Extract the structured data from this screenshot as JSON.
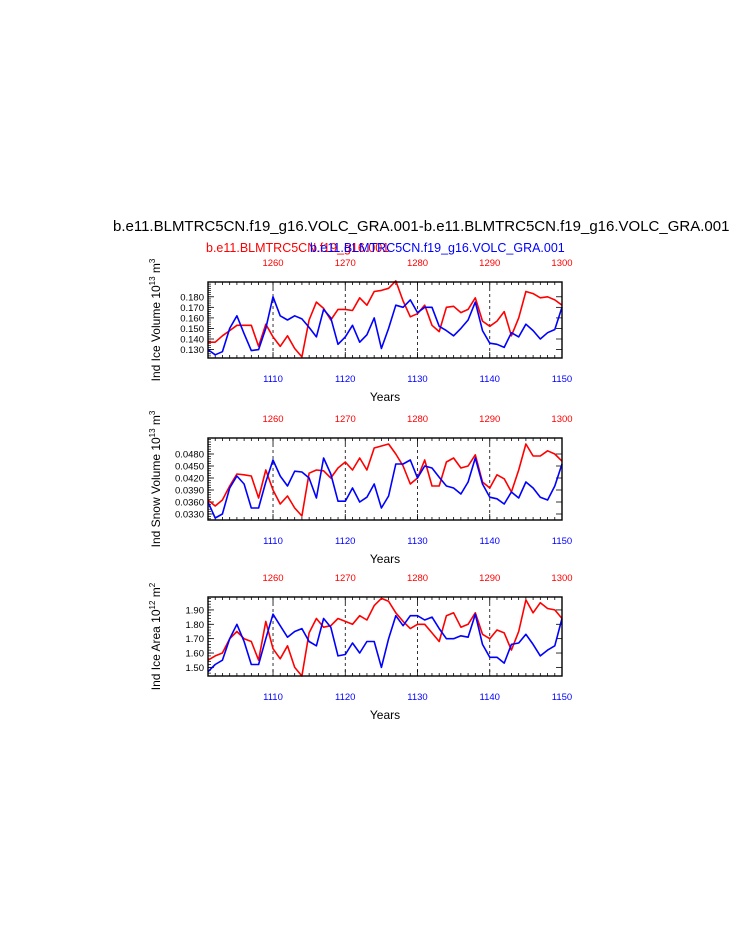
{
  "title": "b.e11.BLMTRC5CN.f19_g16.VOLC_GRA.001-b.e11.BLMTRC5CN.f19_g16.VOLC_GRA.001",
  "legend": {
    "red_label": "b.e11.BLMTRC5CN.f19_g16.001",
    "blue_label": "b.e11.BLMTRC5CN.f19_g16.VOLC_GRA.001"
  },
  "colors": {
    "red": "#ff0000",
    "blue": "#0000ff",
    "axis": "#000000"
  },
  "chart_data": [
    {
      "type": "line",
      "ylabel": "Ind Ice Volume 10",
      "ylabel_sup": "13",
      "ylabel_unit": "m",
      "ylabel_unit_sup": "3",
      "xlabel": "Years",
      "ylim": [
        0.122,
        0.194
      ],
      "yticks": [
        "0.130",
        "0.140",
        "0.150",
        "0.160",
        "0.170",
        "0.180"
      ],
      "bottom_axis": {
        "lim": [
          1101,
          1150
        ],
        "ticks": [
          "1110",
          "1120",
          "1130",
          "1140",
          "1150"
        ]
      },
      "top_axis": {
        "lim": [
          1251,
          1300
        ],
        "ticks": [
          "1260",
          "1270",
          "1280",
          "1290",
          "1300"
        ]
      },
      "series": [
        {
          "name": "b.e11.BLMTRC5CN.f19_g16.001",
          "color": "#ff0000",
          "axis": "top",
          "x": [
            1251,
            1252,
            1253,
            1254,
            1255,
            1256,
            1257,
            1258,
            1259,
            1260,
            1261,
            1262,
            1263,
            1264,
            1265,
            1266,
            1267,
            1268,
            1269,
            1270,
            1271,
            1272,
            1273,
            1274,
            1275,
            1276,
            1277,
            1278,
            1279,
            1280,
            1281,
            1282,
            1283,
            1284,
            1285,
            1286,
            1287,
            1288,
            1289,
            1290,
            1291,
            1292,
            1293,
            1294,
            1295,
            1296,
            1297,
            1298,
            1299,
            1300
          ],
          "values": [
            0.137,
            0.137,
            0.143,
            0.148,
            0.153,
            0.153,
            0.153,
            0.133,
            0.154,
            0.142,
            0.133,
            0.143,
            0.131,
            0.123,
            0.158,
            0.175,
            0.169,
            0.158,
            0.168,
            0.168,
            0.167,
            0.179,
            0.172,
            0.185,
            0.186,
            0.188,
            0.195,
            0.176,
            0.161,
            0.164,
            0.172,
            0.153,
            0.147,
            0.17,
            0.171,
            0.165,
            0.168,
            0.179,
            0.157,
            0.152,
            0.157,
            0.166,
            0.143,
            0.16,
            0.185,
            0.183,
            0.179,
            0.18,
            0.177,
            0.172
          ]
        },
        {
          "name": "b.e11.BLMTRC5CN.f19_g16.VOLC_GRA.001",
          "color": "#0000ff",
          "axis": "bottom",
          "x": [
            1101,
            1102,
            1103,
            1104,
            1105,
            1106,
            1107,
            1108,
            1109,
            1110,
            1111,
            1112,
            1113,
            1114,
            1115,
            1116,
            1117,
            1118,
            1119,
            1120,
            1121,
            1122,
            1123,
            1124,
            1125,
            1126,
            1127,
            1128,
            1129,
            1130,
            1131,
            1132,
            1133,
            1134,
            1135,
            1136,
            1137,
            1138,
            1139,
            1140,
            1141,
            1142,
            1143,
            1144,
            1145,
            1146,
            1147,
            1148,
            1149,
            1150
          ],
          "values": [
            0.13,
            0.125,
            0.128,
            0.15,
            0.162,
            0.145,
            0.129,
            0.13,
            0.15,
            0.18,
            0.162,
            0.158,
            0.162,
            0.159,
            0.151,
            0.142,
            0.168,
            0.16,
            0.135,
            0.142,
            0.153,
            0.137,
            0.144,
            0.16,
            0.131,
            0.15,
            0.172,
            0.17,
            0.177,
            0.165,
            0.17,
            0.17,
            0.152,
            0.148,
            0.143,
            0.15,
            0.158,
            0.175,
            0.148,
            0.136,
            0.135,
            0.132,
            0.146,
            0.142,
            0.154,
            0.148,
            0.14,
            0.146,
            0.149,
            0.17
          ]
        }
      ]
    },
    {
      "type": "line",
      "ylabel": "Ind Snow Volume 10",
      "ylabel_sup": "13",
      "ylabel_unit": "m",
      "ylabel_unit_sup": "3",
      "xlabel": "Years",
      "ylim": [
        0.0315,
        0.052
      ],
      "yticks": [
        "0.0330",
        "0.0360",
        "0.0390",
        "0.0420",
        "0.0450",
        "0.0480"
      ],
      "bottom_axis": {
        "lim": [
          1101,
          1150
        ],
        "ticks": [
          "1110",
          "1120",
          "1130",
          "1140",
          "1150"
        ]
      },
      "top_axis": {
        "lim": [
          1251,
          1300
        ],
        "ticks": [
          "1260",
          "1270",
          "1280",
          "1290",
          "1300"
        ]
      },
      "series": [
        {
          "name": "b.e11.BLMTRC5CN.f19_g16.001",
          "color": "#ff0000",
          "axis": "top",
          "x": [
            1251,
            1252,
            1253,
            1254,
            1255,
            1256,
            1257,
            1258,
            1259,
            1260,
            1261,
            1262,
            1263,
            1264,
            1265,
            1266,
            1267,
            1268,
            1269,
            1270,
            1271,
            1272,
            1273,
            1274,
            1275,
            1276,
            1277,
            1278,
            1279,
            1280,
            1281,
            1282,
            1283,
            1284,
            1285,
            1286,
            1287,
            1288,
            1289,
            1290,
            1291,
            1292,
            1293,
            1294,
            1295,
            1296,
            1297,
            1298,
            1299,
            1300
          ],
          "values": [
            0.0365,
            0.035,
            0.0365,
            0.04,
            0.043,
            0.0428,
            0.0425,
            0.037,
            0.044,
            0.039,
            0.0355,
            0.0375,
            0.0345,
            0.0325,
            0.0432,
            0.044,
            0.0438,
            0.042,
            0.0445,
            0.046,
            0.044,
            0.047,
            0.044,
            0.0495,
            0.05,
            0.0505,
            0.048,
            0.045,
            0.0405,
            0.042,
            0.0465,
            0.04,
            0.04,
            0.046,
            0.047,
            0.0445,
            0.045,
            0.0478,
            0.041,
            0.0395,
            0.0428,
            0.0418,
            0.0385,
            0.044,
            0.0505,
            0.0475,
            0.0475,
            0.0488,
            0.048,
            0.0462
          ]
        },
        {
          "name": "b.e11.BLMTRC5CN.f19_g16.VOLC_GRA.001",
          "color": "#0000ff",
          "axis": "bottom",
          "x": [
            1101,
            1102,
            1103,
            1104,
            1105,
            1106,
            1107,
            1108,
            1109,
            1110,
            1111,
            1112,
            1113,
            1114,
            1115,
            1116,
            1117,
            1118,
            1119,
            1120,
            1121,
            1122,
            1123,
            1124,
            1125,
            1126,
            1127,
            1128,
            1129,
            1130,
            1131,
            1132,
            1133,
            1134,
            1135,
            1136,
            1137,
            1138,
            1139,
            1140,
            1141,
            1142,
            1143,
            1144,
            1145,
            1146,
            1147,
            1148,
            1149,
            1150
          ],
          "values": [
            0.036,
            0.032,
            0.033,
            0.0395,
            0.0425,
            0.0405,
            0.0345,
            0.0345,
            0.041,
            0.0465,
            0.0425,
            0.04,
            0.0437,
            0.0435,
            0.042,
            0.037,
            0.047,
            0.043,
            0.0362,
            0.0362,
            0.0395,
            0.036,
            0.0372,
            0.0405,
            0.0345,
            0.0375,
            0.0455,
            0.0455,
            0.0465,
            0.042,
            0.045,
            0.0445,
            0.0422,
            0.04,
            0.0395,
            0.038,
            0.041,
            0.047,
            0.0405,
            0.0372,
            0.0368,
            0.0355,
            0.0385,
            0.037,
            0.041,
            0.0395,
            0.0372,
            0.0365,
            0.04,
            0.0455
          ]
        }
      ]
    },
    {
      "type": "line",
      "ylabel": "Ind Ice Area 10",
      "ylabel_sup": "12",
      "ylabel_unit": "m",
      "ylabel_unit_sup": "2",
      "xlabel": "Years",
      "ylim": [
        1.44,
        1.99
      ],
      "yticks": [
        "1.50",
        "1.60",
        "1.70",
        "1.80",
        "1.90"
      ],
      "bottom_axis": {
        "lim": [
          1101,
          1150
        ],
        "ticks": [
          "1110",
          "1120",
          "1130",
          "1140",
          "1150"
        ]
      },
      "top_axis": {
        "lim": [
          1251,
          1300
        ],
        "ticks": [
          "1260",
          "1270",
          "1280",
          "1290",
          "1300"
        ]
      },
      "series": [
        {
          "name": "b.e11.BLMTRC5CN.f19_g16.001",
          "color": "#ff0000",
          "axis": "top",
          "x": [
            1251,
            1252,
            1253,
            1254,
            1255,
            1256,
            1257,
            1258,
            1259,
            1260,
            1261,
            1262,
            1263,
            1264,
            1265,
            1266,
            1267,
            1268,
            1269,
            1270,
            1271,
            1272,
            1273,
            1274,
            1275,
            1276,
            1277,
            1278,
            1279,
            1280,
            1281,
            1282,
            1283,
            1284,
            1285,
            1286,
            1287,
            1288,
            1289,
            1290,
            1291,
            1292,
            1293,
            1294,
            1295,
            1296,
            1297,
            1298,
            1299,
            1300
          ],
          "values": [
            1.55,
            1.58,
            1.6,
            1.7,
            1.75,
            1.7,
            1.68,
            1.55,
            1.82,
            1.63,
            1.56,
            1.65,
            1.5,
            1.44,
            1.74,
            1.84,
            1.78,
            1.79,
            1.84,
            1.82,
            1.8,
            1.86,
            1.83,
            1.93,
            1.98,
            1.96,
            1.88,
            1.82,
            1.77,
            1.8,
            1.8,
            1.74,
            1.68,
            1.86,
            1.88,
            1.78,
            1.8,
            1.88,
            1.73,
            1.7,
            1.76,
            1.74,
            1.62,
            1.75,
            1.97,
            1.88,
            1.95,
            1.91,
            1.9,
            1.84
          ]
        },
        {
          "name": "b.e11.BLMTRC5CN.f19_g16.VOLC_GRA.001",
          "color": "#0000ff",
          "axis": "bottom",
          "x": [
            1101,
            1102,
            1103,
            1104,
            1105,
            1106,
            1107,
            1108,
            1109,
            1110,
            1111,
            1112,
            1113,
            1114,
            1115,
            1116,
            1117,
            1118,
            1119,
            1120,
            1121,
            1122,
            1123,
            1124,
            1125,
            1126,
            1127,
            1128,
            1129,
            1130,
            1131,
            1132,
            1133,
            1134,
            1135,
            1136,
            1137,
            1138,
            1139,
            1140,
            1141,
            1142,
            1143,
            1144,
            1145,
            1146,
            1147,
            1148,
            1149,
            1150
          ],
          "values": [
            1.47,
            1.52,
            1.55,
            1.7,
            1.8,
            1.68,
            1.52,
            1.52,
            1.7,
            1.87,
            1.79,
            1.71,
            1.75,
            1.77,
            1.68,
            1.65,
            1.84,
            1.78,
            1.58,
            1.59,
            1.67,
            1.6,
            1.68,
            1.68,
            1.5,
            1.7,
            1.86,
            1.79,
            1.86,
            1.86,
            1.83,
            1.85,
            1.77,
            1.7,
            1.7,
            1.72,
            1.71,
            1.87,
            1.66,
            1.57,
            1.57,
            1.53,
            1.66,
            1.67,
            1.73,
            1.66,
            1.58,
            1.62,
            1.65,
            1.84
          ]
        }
      ]
    }
  ]
}
